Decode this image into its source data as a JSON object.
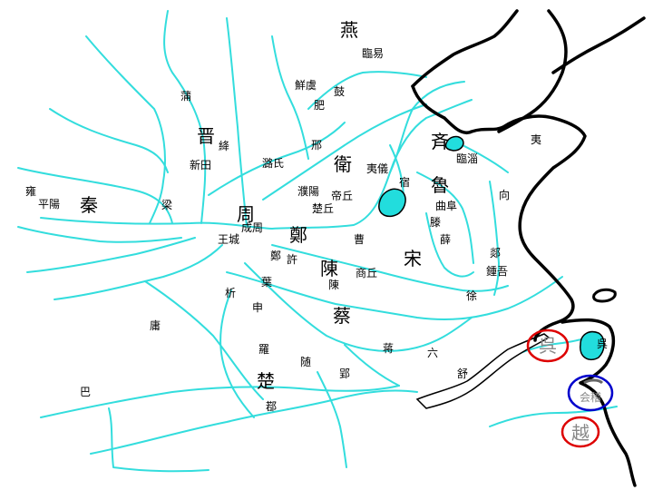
{
  "map": {
    "states": {
      "yan": "燕",
      "jin": "晋",
      "qin": "秦",
      "zhou": "周",
      "zheng": "鄭",
      "wei": "衛",
      "qi": "斉",
      "lu": "魯",
      "song": "宋",
      "chen": "陳",
      "cai": "蔡",
      "chu": "楚",
      "wu": "呉",
      "yue": "越"
    },
    "places": {
      "linyi": "臨易",
      "xianyu": "鮮虞",
      "gu": "鼓",
      "fei": "肥",
      "pu": "蒲",
      "jiang": "絳",
      "xintian": "新田",
      "luoshi": "潞氏",
      "xing": "邢",
      "liang": "梁",
      "puyang": "濮陽",
      "diqiu": "帝丘",
      "chuqiu": "楚丘",
      "yong": "雍",
      "pingyang": "平陽",
      "chengzhou": "成周",
      "wangcheng": "王城",
      "cao": "曹",
      "yiyi": "夷儀",
      "su": "宿",
      "linzi": "臨淄",
      "qufu": "曲阜",
      "teng": "滕",
      "xue": "薛",
      "xiang": "向",
      "yi": "夷",
      "tan": "郯",
      "zhongwu": "鍾吾",
      "xu": "徐",
      "shangqiu": "商丘",
      "chen_city": "陳",
      "xu2": "許",
      "zheng_city": "鄭",
      "ye": "葉",
      "xi": "析",
      "shen": "申",
      "yong2": "庸",
      "luo": "羅",
      "sui": "随",
      "jiang2": "蒋",
      "liu": "六",
      "shu": "舒",
      "ying": "郢",
      "ruo": "鄀",
      "ba": "巴",
      "wu_city": "呉",
      "kuaiji": "会稽"
    },
    "highlights": {
      "wu_circle_color": "#dd0000",
      "yue_circle_color": "#dd0000",
      "kuaiji_circle_color": "#0000cc"
    }
  }
}
